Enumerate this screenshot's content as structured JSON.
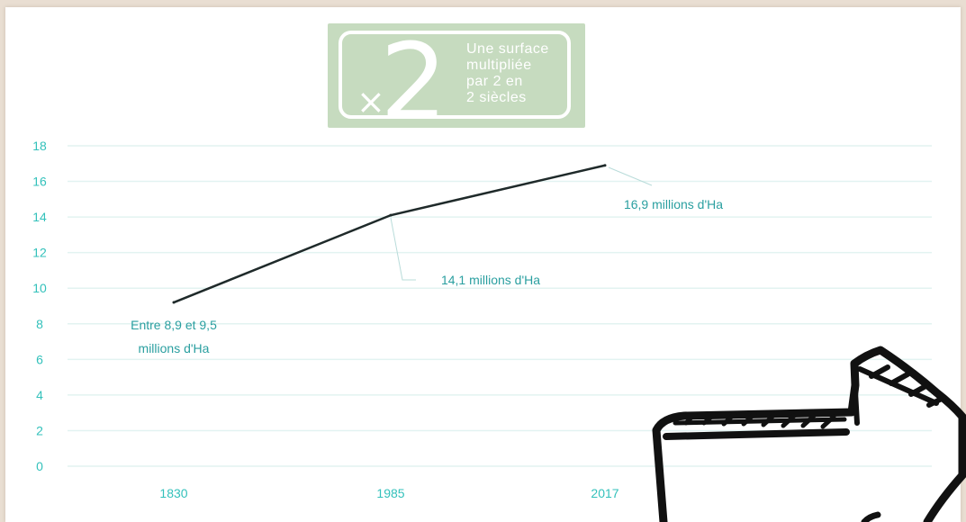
{
  "badge": {
    "symbol": "×",
    "number": "2",
    "lines": [
      "Une surface",
      "multipliée",
      "par 2 en",
      "2 siècles"
    ],
    "color": "#c6dbbf"
  },
  "chart_data": {
    "type": "line",
    "categories": [
      "1830",
      "1985",
      "2017"
    ],
    "values": [
      9.2,
      14.1,
      16.9
    ],
    "ylim": [
      0,
      18
    ],
    "yticks": [
      0,
      2,
      4,
      6,
      8,
      10,
      12,
      14,
      16,
      18
    ],
    "grid": true,
    "line_color": "#1f2a2a",
    "tick_color": "#33c1bb",
    "grid_color": "#e2f3f1",
    "annotations": [
      {
        "category": "1830",
        "lines": [
          "Entre 8,9 et 9,5",
          "millions d'Ha"
        ]
      },
      {
        "category": "1985",
        "lines": [
          "14,1 millions d'Ha"
        ]
      },
      {
        "category": "2017",
        "lines": [
          "16,9 millions d'Ha"
        ]
      }
    ]
  },
  "decoration": {
    "arrow_icon": "hand-drawn-arrow-icon"
  }
}
